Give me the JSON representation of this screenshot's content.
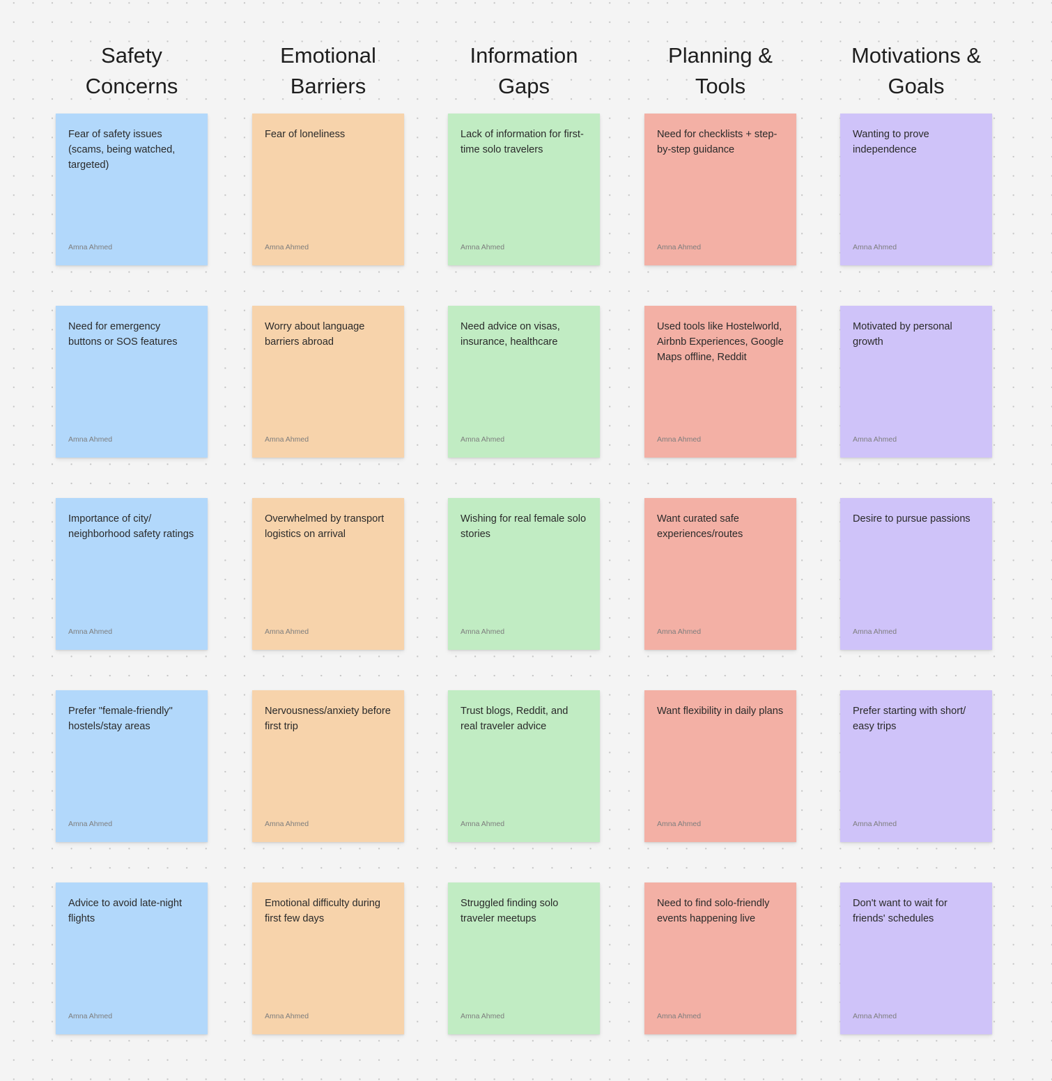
{
  "colors": {
    "canvas": "#f4f4f4",
    "dot": "#c4c4c4",
    "blue": "#b2d8fb",
    "orange": "#f7d3ab",
    "green": "#c1ecc3",
    "red": "#f3b0a5",
    "purple": "#cfc3f9"
  },
  "columns": [
    {
      "title": "Safety\nConcerns",
      "color": "#b2d8fb",
      "notes": [
        {
          "text": "Fear of safety issues (scams, being watched, targeted)",
          "author": "Amna Ahmed"
        },
        {
          "text": "Need for emergency buttons or SOS features",
          "author": "Amna Ahmed"
        },
        {
          "text": "Importance of city/ neighborhood safety ratings",
          "author": "Amna Ahmed"
        },
        {
          "text": "Prefer \"female-friendly\" hostels/stay areas",
          "author": "Amna Ahmed"
        },
        {
          "text": "Advice to avoid late-night flights",
          "author": "Amna Ahmed"
        }
      ]
    },
    {
      "title": "Emotional\nBarriers",
      "color": "#f7d3ab",
      "notes": [
        {
          "text": "Fear of loneliness",
          "author": "Amna Ahmed"
        },
        {
          "text": "Worry about language barriers abroad",
          "author": "Amna Ahmed"
        },
        {
          "text": "Overwhelmed by transport logistics on arrival",
          "author": "Amna Ahmed"
        },
        {
          "text": "Nervousness/anxiety before first trip",
          "author": "Amna Ahmed"
        },
        {
          "text": "Emotional difficulty during first few days",
          "author": "Amna Ahmed"
        }
      ]
    },
    {
      "title": "Information\nGaps",
      "color": "#c1ecc3",
      "notes": [
        {
          "text": "Lack of information for first-time solo travelers",
          "author": "Amna Ahmed"
        },
        {
          "text": "Need advice on visas, insurance, healthcare",
          "author": "Amna Ahmed"
        },
        {
          "text": "Wishing for real female solo stories",
          "author": "Amna Ahmed"
        },
        {
          "text": "Trust blogs, Reddit, and real traveler advice",
          "author": "Amna Ahmed"
        },
        {
          "text": "Struggled finding solo traveler meetups",
          "author": "Amna Ahmed"
        }
      ]
    },
    {
      "title": "Planning &\nTools",
      "color": "#f3b0a5",
      "notes": [
        {
          "text": "Need for checklists + step-by-step guidance",
          "author": "Amna Ahmed"
        },
        {
          "text": "Used tools like Hostelworld, Airbnb Experiences, Google Maps offline, Reddit",
          "author": "Amna Ahmed"
        },
        {
          "text": "Want curated safe experiences/routes",
          "author": "Amna Ahmed"
        },
        {
          "text": "Want flexibility in daily plans",
          "author": "Amna Ahmed"
        },
        {
          "text": "Need to find solo-friendly events happening live",
          "author": "Amna Ahmed"
        }
      ]
    },
    {
      "title": "Motivations &\nGoals",
      "color": "#cfc3f9",
      "notes": [
        {
          "text": "Wanting to prove independence",
          "author": "Amna Ahmed"
        },
        {
          "text": "Motivated by personal growth",
          "author": "Amna Ahmed"
        },
        {
          "text": "Desire to pursue passions",
          "author": "Amna Ahmed"
        },
        {
          "text": "Prefer starting with short/ easy trips",
          "author": "Amna Ahmed"
        },
        {
          "text": "Don't want to wait for friends' schedules",
          "author": "Amna Ahmed"
        }
      ]
    }
  ]
}
